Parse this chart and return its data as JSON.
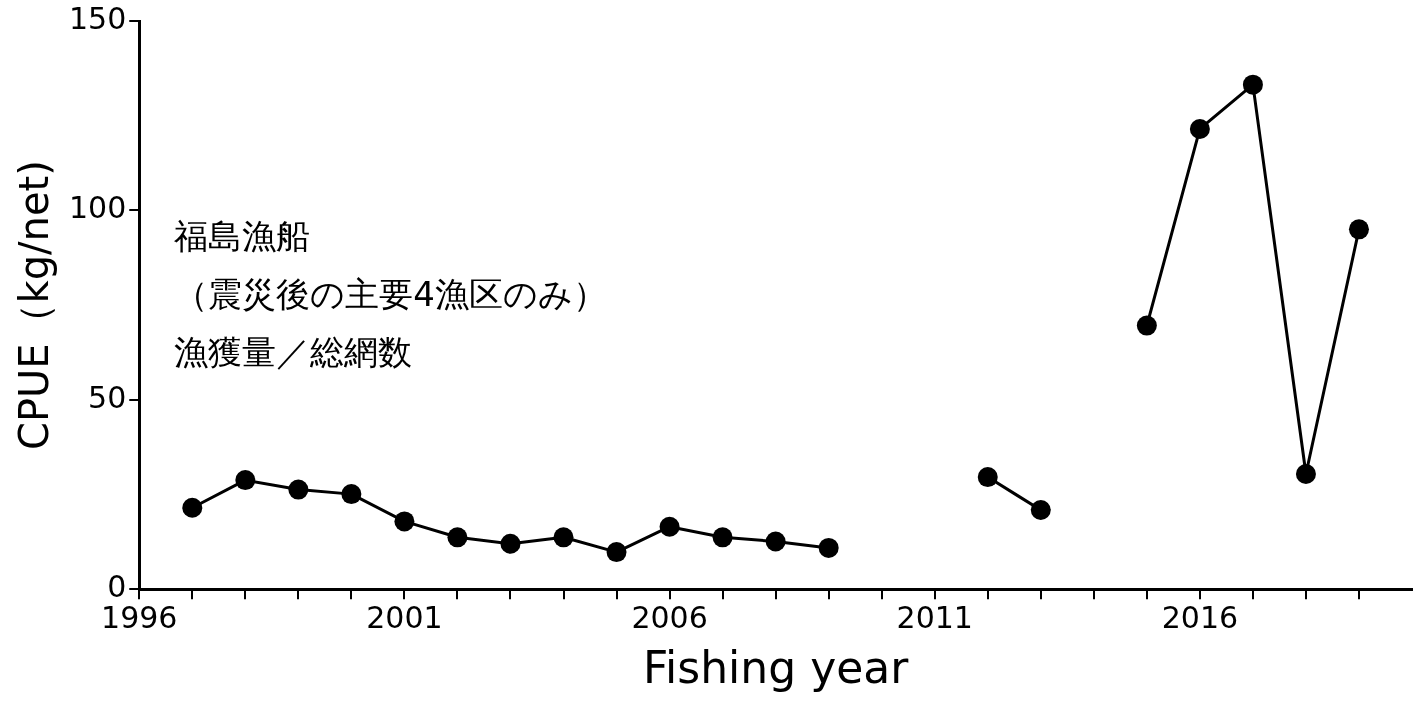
{
  "chart_data": {
    "type": "line",
    "xlabel": "Fishing year",
    "ylabel": "CPUE（kg/net)",
    "x": [
      1997,
      1998,
      1999,
      2000,
      2001,
      2002,
      2003,
      2004,
      2005,
      2006,
      2007,
      2008,
      2009,
      2010,
      2011,
      2012,
      2013,
      2014,
      2015,
      2016,
      2017,
      2018,
      2019
    ],
    "series": [
      {
        "color": "#000000",
        "values": [
          21.5,
          28.8,
          26.3,
          25.1,
          17.9,
          13.7,
          12.0,
          13.7,
          9.8,
          16.5,
          13.7,
          12.6,
          10.9,
          null,
          null,
          29.6,
          20.9,
          null,
          69.6,
          121.5,
          133.2,
          30.4,
          95.0
        ]
      }
    ],
    "xlim": [
      1996,
      2020
    ],
    "xticks": [
      1996,
      {
        "value": 1997,
        "label": null
      },
      {
        "value": 1998,
        "label": null
      },
      {
        "value": 1999,
        "label": null
      },
      {
        "value": 2000,
        "label": null
      },
      2001,
      {
        "value": 2002,
        "label": null
      },
      {
        "value": 2003,
        "label": null
      },
      {
        "value": 2004,
        "label": null
      },
      {
        "value": 2005,
        "label": null
      },
      2006,
      {
        "value": 2007,
        "label": null
      },
      {
        "value": 2008,
        "label": null
      },
      {
        "value": 2009,
        "label": null
      },
      {
        "value": 2010,
        "label": null
      },
      2011,
      {
        "value": 2012,
        "label": null
      },
      {
        "value": 2013,
        "label": null
      },
      {
        "value": 2014,
        "label": null
      },
      {
        "value": 2015,
        "label": null
      },
      2016,
      {
        "value": 2017,
        "label": null
      },
      {
        "value": 2018,
        "label": null
      },
      {
        "value": 2019,
        "label": null
      }
    ],
    "ylim": [
      0,
      150
    ],
    "yticks": [
      0,
      50,
      100,
      150
    ],
    "marker": "circle",
    "line_style": "solid",
    "annotations": [
      "福島漁船",
      "（震災後の主要4漁区のみ）",
      "漁獲量／総網数"
    ]
  }
}
